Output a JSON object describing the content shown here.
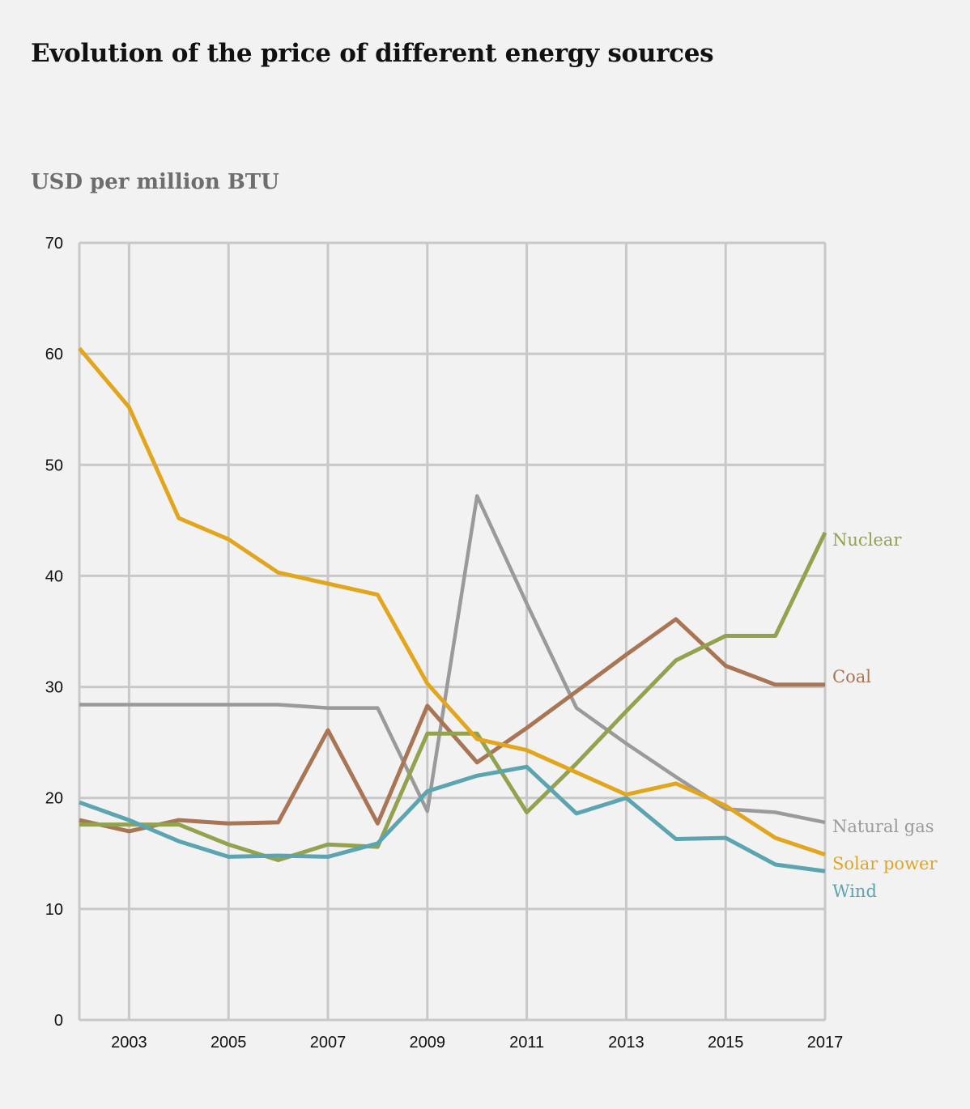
{
  "title": "Evolution of the price of different energy sources",
  "subtitle": "USD per million BTU",
  "chart_data": {
    "type": "line",
    "title": "Evolution of the price of different energy sources",
    "ylabel": "USD per million BTU",
    "xlabel": "",
    "xlim": [
      2002,
      2017
    ],
    "ylim": [
      0,
      70
    ],
    "y_ticks": [
      0,
      10,
      20,
      30,
      40,
      50,
      60,
      70
    ],
    "x_ticks": [
      2003,
      2005,
      2007,
      2009,
      2011,
      2013,
      2015,
      2017
    ],
    "grid": true,
    "x": [
      2002,
      2003,
      2004,
      2005,
      2006,
      2007,
      2008,
      2009,
      2010,
      2011,
      2012,
      2013,
      2014,
      2015,
      2016,
      2017
    ],
    "series": [
      {
        "name": "Natural gas",
        "color": "#9a9a9a",
        "width": 4.5,
        "values": [
          28.4,
          28.4,
          28.4,
          28.4,
          28.4,
          28.1,
          28.1,
          18.8,
          47.2,
          37.5,
          28.1,
          24.9,
          21.9,
          19.0,
          18.7,
          17.8
        ]
      },
      {
        "name": "Coal",
        "color": "#a87555",
        "width": 5,
        "values": [
          18.0,
          17.0,
          18.0,
          17.7,
          17.8,
          26.1,
          17.7,
          28.3,
          23.2,
          26.3,
          29.6,
          32.9,
          36.1,
          31.9,
          30.2,
          30.2
        ]
      },
      {
        "name": "Nuclear",
        "color": "#93a24f",
        "width": 5,
        "values": [
          17.6,
          17.6,
          17.6,
          15.8,
          14.4,
          15.8,
          15.6,
          25.8,
          25.8,
          18.7,
          23.1,
          27.8,
          32.4,
          34.6,
          34.6,
          43.9
        ]
      },
      {
        "name": "Wind",
        "color": "#5ba4b0",
        "width": 5,
        "values": [
          19.6,
          18.0,
          16.1,
          14.7,
          14.8,
          14.7,
          15.9,
          20.6,
          22.0,
          22.8,
          18.6,
          20.0,
          16.3,
          16.4,
          14.0,
          13.4
        ]
      },
      {
        "name": "Solar power",
        "color": "#e2a61e",
        "width": 5,
        "values": [
          60.5,
          55.2,
          45.2,
          43.3,
          40.3,
          39.3,
          38.3,
          30.3,
          25.3,
          24.3,
          22.3,
          20.3,
          21.3,
          19.3,
          16.4,
          14.9
        ]
      }
    ],
    "legend": [
      {
        "text": "Nuclear",
        "color": "#93a24f"
      },
      {
        "text": "Coal",
        "color": "#a87555"
      },
      {
        "text": "Natural gas",
        "color": "#9a9a9a"
      },
      {
        "text": "Solar power",
        "color": "#e2a61e"
      },
      {
        "text": "Wind",
        "color": "#5ba4b0"
      }
    ]
  }
}
